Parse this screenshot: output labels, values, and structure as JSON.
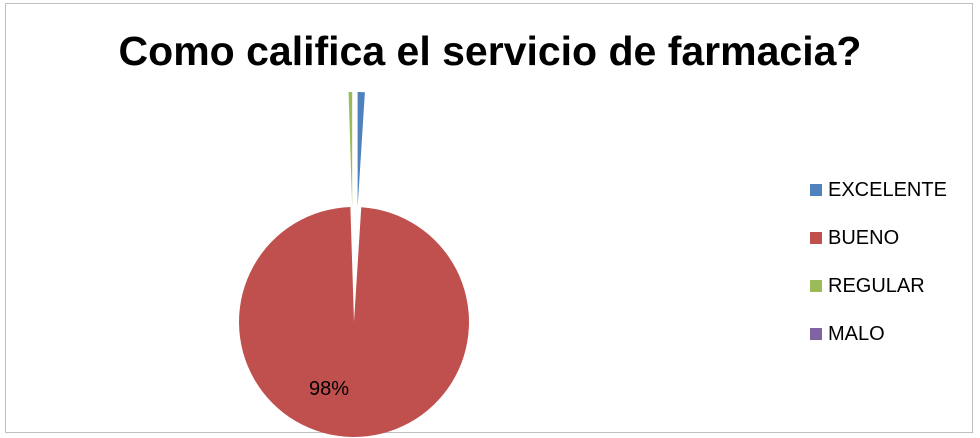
{
  "chart_data": {
    "type": "pie",
    "title": "Como califica el servicio de farmacia?",
    "categories": [
      "EXCELENTE",
      "BUENO",
      "REGULAR",
      "MALO"
    ],
    "values": [
      1,
      98,
      0.5,
      0
    ],
    "colors": [
      "#4f81bd",
      "#c0504d",
      "#9bbb59",
      "#8064a2"
    ],
    "data_labels": [
      "",
      "98%",
      "",
      ""
    ],
    "legend_position": "right"
  }
}
